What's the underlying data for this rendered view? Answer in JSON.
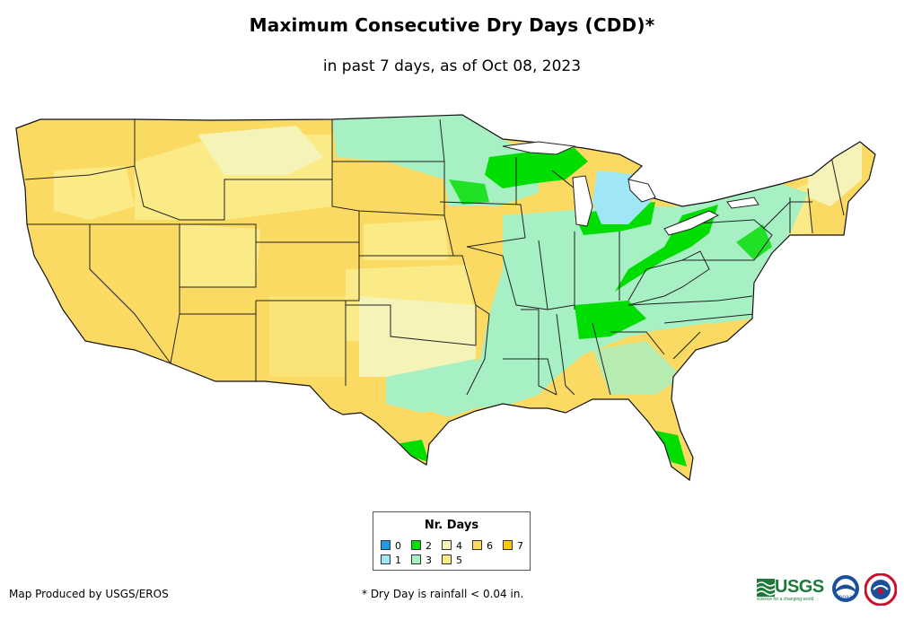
{
  "header": {
    "title": "Maximum Consecutive Dry Days (CDD)*",
    "subtitle": "in past 7 days, as of Oct 08, 2023"
  },
  "legend": {
    "title": "Nr. Days",
    "items": [
      {
        "label": "0",
        "color": "#1e9be6"
      },
      {
        "label": "1",
        "color": "#9fe6f6"
      },
      {
        "label": "2",
        "color": "#00dd00"
      },
      {
        "label": "3",
        "color": "#a6f0c3"
      },
      {
        "label": "4",
        "color": "#f6f3b9"
      },
      {
        "label": "5",
        "color": "#fbeb86"
      },
      {
        "label": "6",
        "color": "#fbda63"
      },
      {
        "label": "7",
        "color": "#f9c900"
      }
    ]
  },
  "footer": {
    "credit": "Map Produced by USGS/EROS",
    "footnote": "* Dry Day is rainfall < 0.04 in."
  },
  "logos": {
    "usgs": "USGS",
    "usgs_tagline": "science for a changing world",
    "noaa": "noaa"
  }
}
